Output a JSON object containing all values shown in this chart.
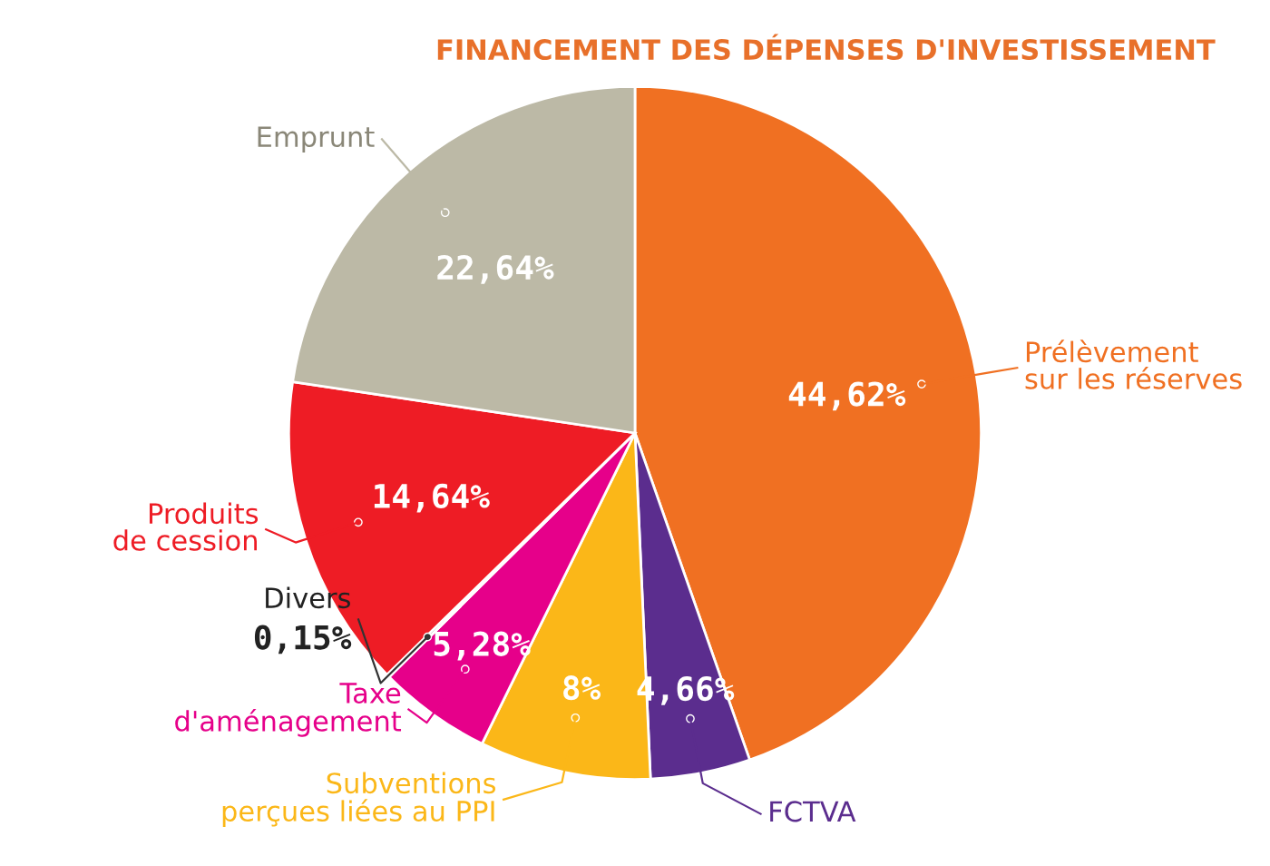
{
  "chart_data": {
    "type": "pie",
    "title": "FINANCEMENT DES DÉPENSES D'INVESTISSEMENT",
    "categories": [
      "Prélèvement\nsur les réserves",
      "FCTVA",
      "Subventions\nperçues liées au PPI",
      "Taxe\nd'aménagement",
      "Divers",
      "Produits\nde cession",
      "Emprunt"
    ],
    "values": [
      44.62,
      4.66,
      8,
      5.28,
      0.15,
      14.64,
      22.64
    ],
    "value_labels": [
      "44,62%",
      "4,66%",
      "8%",
      "5,28%",
      "0,15%",
      "14,64%",
      "22,64%"
    ],
    "colors": [
      "#f07022",
      "#5b2d8e",
      "#fbb718",
      "#e6008a",
      "#3a3a3a",
      "#ee1c25",
      "#bcb9a6"
    ],
    "legend": false
  }
}
